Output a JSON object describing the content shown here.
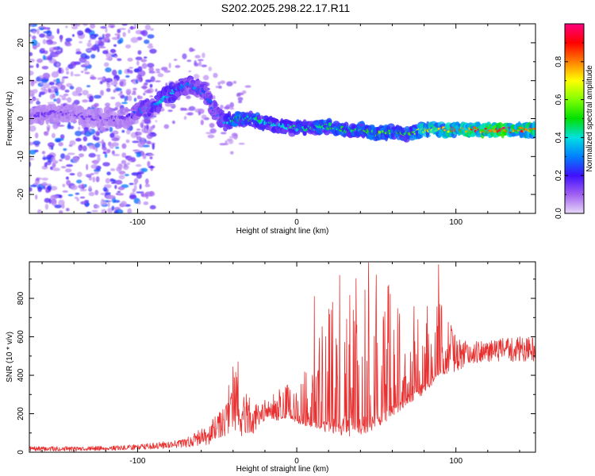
{
  "title": "S202.2025.298.22.17.R11",
  "chart_data": [
    {
      "type": "heatmap",
      "xlabel": "Height of straight line (km)",
      "ylabel": "Frequency (Hz)",
      "xlim": [
        -168,
        150
      ],
      "ylim": [
        -25,
        25
      ],
      "xticks": [
        -100,
        0,
        100
      ],
      "yticks": [
        -20,
        -10,
        0,
        10,
        20
      ],
      "colorbar": {
        "label": "Normalized spectral amplitude",
        "range": [
          0,
          1
        ],
        "ticks": [
          0.0,
          0.2,
          0.4,
          0.6,
          0.8
        ],
        "tick_labels": [
          "0.0",
          "0.2",
          "0.4",
          "0.6",
          "0.8"
        ]
      },
      "ridge": {
        "x": [
          -168,
          -145,
          -125,
          -108,
          -98,
          -88,
          -78,
          -68,
          -58,
          -50,
          -45,
          -38,
          -30,
          -20,
          -10,
          0,
          10,
          20,
          30,
          40,
          50,
          60,
          70,
          80,
          90,
          100,
          110,
          120,
          130,
          140,
          150
        ],
        "frequency": [
          1,
          1.5,
          0,
          0,
          2,
          4,
          7,
          9,
          7,
          1,
          -1,
          0,
          0,
          -1,
          -2,
          -2.5,
          -2.5,
          -2,
          -3,
          -3,
          -4,
          -3.5,
          -4,
          -3,
          -3,
          -3,
          -3,
          -3,
          -3,
          -3,
          -3
        ],
        "amplitude": [
          0.15,
          0.15,
          0.15,
          0.15,
          0.3,
          0.38,
          0.38,
          0.32,
          0.3,
          0.28,
          0.35,
          0.55,
          0.5,
          0.45,
          0.42,
          0.45,
          0.45,
          0.5,
          0.5,
          0.5,
          0.55,
          0.6,
          0.5,
          0.75,
          0.8,
          0.85,
          0.9,
          0.95,
          0.95,
          0.9,
          0.85
        ]
      },
      "background_noise": {
        "x_range": [
          -168,
          -100
        ],
        "amplitude": 0.05
      }
    },
    {
      "type": "line",
      "xlabel": "Height of straight line (km)",
      "ylabel": "SNR (10 * v/v)",
      "xlim": [
        -168,
        150
      ],
      "ylim": [
        0,
        990
      ],
      "xticks": [
        -100,
        0,
        100
      ],
      "yticks": [
        0,
        200,
        400,
        600,
        800
      ],
      "color": "#e83030",
      "envelope": {
        "x": [
          -168,
          -140,
          -110,
          -90,
          -70,
          -55,
          -45,
          -40,
          -35,
          -25,
          -15,
          -5,
          0,
          10,
          20,
          30,
          40,
          50,
          60,
          70,
          80,
          90,
          100,
          110,
          120,
          130,
          140,
          150
        ],
        "low": [
          5,
          5,
          10,
          15,
          25,
          40,
          80,
          120,
          80,
          100,
          150,
          180,
          150,
          120,
          100,
          80,
          90,
          120,
          180,
          250,
          300,
          400,
          420,
          460,
          470,
          470,
          470,
          470
        ],
        "high": [
          30,
          30,
          35,
          50,
          70,
          150,
          250,
          470,
          330,
          250,
          300,
          380,
          380,
          580,
          880,
          920,
          980,
          960,
          850,
          780,
          790,
          800,
          600,
          580,
          580,
          600,
          600,
          600
        ]
      },
      "peaks": [
        {
          "x": 45,
          "y": 985
        },
        {
          "x": 89,
          "y": 975
        },
        {
          "x": 27,
          "y": 920
        },
        {
          "x": 11,
          "y": 810
        },
        {
          "x": -37,
          "y": 470
        }
      ]
    }
  ]
}
